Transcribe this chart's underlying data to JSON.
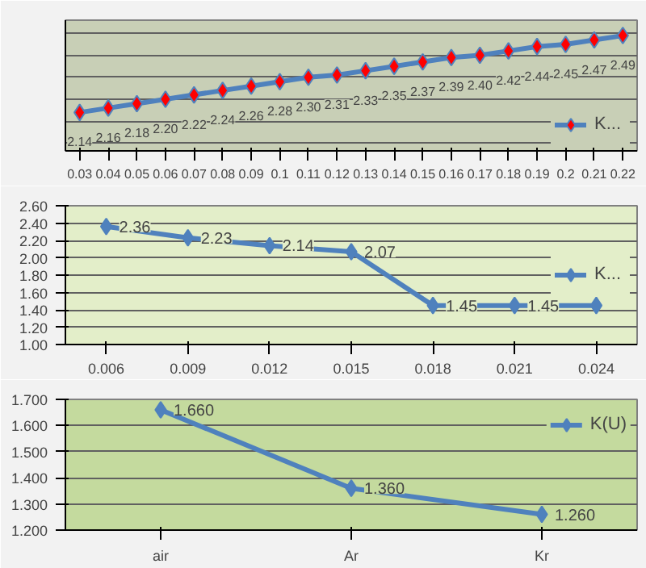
{
  "chart_data": [
    {
      "type": "line",
      "categories": [
        "0.03",
        "0.04",
        "0.05",
        "0.06",
        "0.07",
        "0.08",
        "0.09",
        "0.1",
        "0.11",
        "0.12",
        "0.13",
        "0.14",
        "0.15",
        "0.16",
        "0.17",
        "0.18",
        "0.19",
        "0.2",
        "0.21",
        "0.22"
      ],
      "series": [
        {
          "name": "K...",
          "color": "#4f81bd",
          "colors": [
            "#ff0000",
            "#ff0000",
            "#ff0000",
            "#ff0000",
            "#ff0000",
            "#ff0000",
            "#ff0000",
            "#ff0000",
            "#ff0000",
            "#ff0000",
            "#ff0000",
            "#ff0000",
            "#ff0000",
            "#ff0000",
            "#ff0000",
            "#ff0000",
            "#ff0000",
            "#ff0000",
            "#ff0000",
            "#ff0000"
          ],
          "values": [
            2.14,
            2.16,
            2.18,
            2.2,
            2.22,
            2.24,
            2.26,
            2.28,
            2.3,
            2.31,
            2.33,
            2.35,
            2.37,
            2.39,
            2.4,
            2.42,
            2.44,
            2.45,
            2.47,
            2.49
          ],
          "value_labels": [
            "2.14",
            "2.16",
            "2.18",
            "2.20",
            "2.22",
            "2.24",
            "2.26",
            "2.28",
            "2.30",
            "2.31",
            "2.33",
            "2.35",
            "2.37",
            "2.39",
            "2.40",
            "2.42",
            "2.44",
            "2.45",
            "2.47",
            "2.49"
          ]
        }
      ],
      "marker": "diamond",
      "grid": "y",
      "legend": "bottom right",
      "tick_labels": "x"
    },
    {
      "type": "line",
      "categories": [
        "0.006",
        "0.009",
        "0.012",
        "0.015",
        "0.018",
        "0.021",
        "0.024"
      ],
      "series": [
        {
          "name": "K...",
          "color": "#4f81bd",
          "values": [
            2.36,
            2.23,
            2.14,
            2.07,
            1.45,
            1.45,
            1.45
          ],
          "value_labels": [
            "2.36",
            "2.23",
            "2.14",
            "2.07",
            "1.45",
            "1.45",
            null
          ]
        }
      ],
      "ylim": [
        1.0,
        2.6
      ],
      "yticks": [
        {
          "value": 1.0,
          "label": "1.00"
        },
        {
          "value": 1.2,
          "label": "1.20"
        },
        {
          "value": 1.4,
          "label": "1.40"
        },
        {
          "value": 1.6,
          "label": "1.60"
        },
        {
          "value": 1.8,
          "label": "1.80"
        },
        {
          "value": 2.0,
          "label": "2.00"
        },
        {
          "value": 2.2,
          "label": "2.20"
        },
        {
          "value": 2.4,
          "label": "2.40"
        },
        {
          "value": 2.6,
          "label": "2.60"
        }
      ],
      "marker": "diamond",
      "grid": "y",
      "legend": "right"
    },
    {
      "type": "line",
      "categories": [
        "air",
        "Ar",
        "Kr"
      ],
      "series": [
        {
          "name": "K(U)",
          "color": "#4f81bd",
          "values": [
            1.66,
            1.36,
            1.26
          ],
          "value_labels": [
            "1.660",
            "1.360",
            "1.260"
          ]
        }
      ],
      "ylim": [
        1.2,
        1.7
      ],
      "yticks": [
        {
          "value": 1.2,
          "label": "1.200"
        },
        {
          "value": 1.3,
          "label": "1.300"
        },
        {
          "value": 1.4,
          "label": "1.400"
        },
        {
          "value": 1.5,
          "label": "1.500"
        },
        {
          "value": 1.6,
          "label": "1.600"
        },
        {
          "value": 1.7,
          "label": "1.700"
        }
      ],
      "marker": "diamond",
      "grid": "y",
      "legend": "top right"
    }
  ]
}
